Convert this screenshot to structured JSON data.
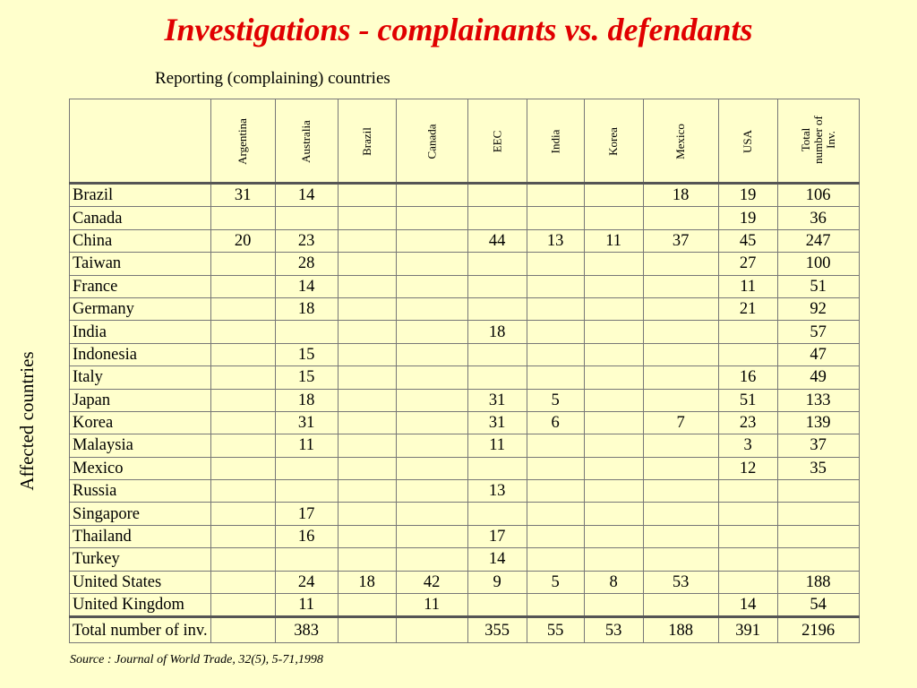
{
  "title": "Investigations - complainants vs. defendants",
  "subtitle": "Reporting (complaining) countries",
  "side_label": "Affected countries",
  "columns": [
    "Argentina",
    "Australia",
    "Brazil",
    "Canada",
    "EEC",
    "India",
    "Korea",
    "Mexico",
    "USA",
    "Total number of Inv."
  ],
  "rows": [
    {
      "country": "Brazil",
      "values": [
        "31",
        "14",
        "",
        "",
        "",
        "",
        "",
        "18",
        "19",
        "106"
      ]
    },
    {
      "country": "Canada",
      "values": [
        "",
        "",
        "",
        "",
        "",
        "",
        "",
        "",
        "19",
        "36"
      ]
    },
    {
      "country": "China",
      "values": [
        "20",
        "23",
        "",
        "",
        "44",
        "13",
        "11",
        "37",
        "45",
        "247"
      ]
    },
    {
      "country": "Taiwan",
      "values": [
        "",
        "28",
        "",
        "",
        "",
        "",
        "",
        "",
        "27",
        "100"
      ]
    },
    {
      "country": "France",
      "values": [
        "",
        "14",
        "",
        "",
        "",
        "",
        "",
        "",
        "11",
        "51"
      ]
    },
    {
      "country": "Germany",
      "values": [
        "",
        "18",
        "",
        "",
        "",
        "",
        "",
        "",
        "21",
        "92"
      ]
    },
    {
      "country": "India",
      "values": [
        "",
        "",
        "",
        "",
        "18",
        "",
        "",
        "",
        "",
        "57"
      ]
    },
    {
      "country": "Indonesia",
      "values": [
        "",
        "15",
        "",
        "",
        "",
        "",
        "",
        "",
        "",
        "47"
      ]
    },
    {
      "country": "Italy",
      "values": [
        "",
        "15",
        "",
        "",
        "",
        "",
        "",
        "",
        "16",
        "49"
      ]
    },
    {
      "country": "Japan",
      "values": [
        "",
        "18",
        "",
        "",
        "31",
        "5",
        "",
        "",
        "51",
        "133"
      ]
    },
    {
      "country": "Korea",
      "values": [
        "",
        "31",
        "",
        "",
        "31",
        "6",
        "",
        "7",
        "23",
        "139"
      ]
    },
    {
      "country": "Malaysia",
      "values": [
        "",
        "11",
        "",
        "",
        "11",
        "",
        "",
        "",
        "3",
        "37"
      ]
    },
    {
      "country": "Mexico",
      "values": [
        "",
        "",
        "",
        "",
        "",
        "",
        "",
        "",
        "12",
        "35"
      ]
    },
    {
      "country": "Russia",
      "values": [
        "",
        "",
        "",
        "",
        "13",
        "",
        "",
        "",
        "",
        ""
      ]
    },
    {
      "country": "Singapore",
      "values": [
        "",
        "17",
        "",
        "",
        "",
        "",
        "",
        "",
        "",
        ""
      ]
    },
    {
      "country": "Thailand",
      "values": [
        "",
        "16",
        "",
        "",
        "17",
        "",
        "",
        "",
        "",
        ""
      ]
    },
    {
      "country": "Turkey",
      "values": [
        "",
        "",
        "",
        "",
        "14",
        "",
        "",
        "",
        "",
        ""
      ]
    },
    {
      "country": "United States",
      "values": [
        "",
        "24",
        "18",
        "42",
        "9",
        "5",
        "8",
        "53",
        "",
        "188"
      ]
    },
    {
      "country": "United Kingdom",
      "values": [
        "",
        "11",
        "",
        "11",
        "",
        "",
        "",
        "",
        "14",
        "54"
      ]
    }
  ],
  "total_row": {
    "label": "Total number of inv.",
    "values": [
      "",
      "383",
      "",
      "",
      "355",
      "55",
      "53",
      "188",
      "391",
      "2196"
    ]
  },
  "source": "Source : Journal of World Trade, 32(5), 5-71,1998"
}
